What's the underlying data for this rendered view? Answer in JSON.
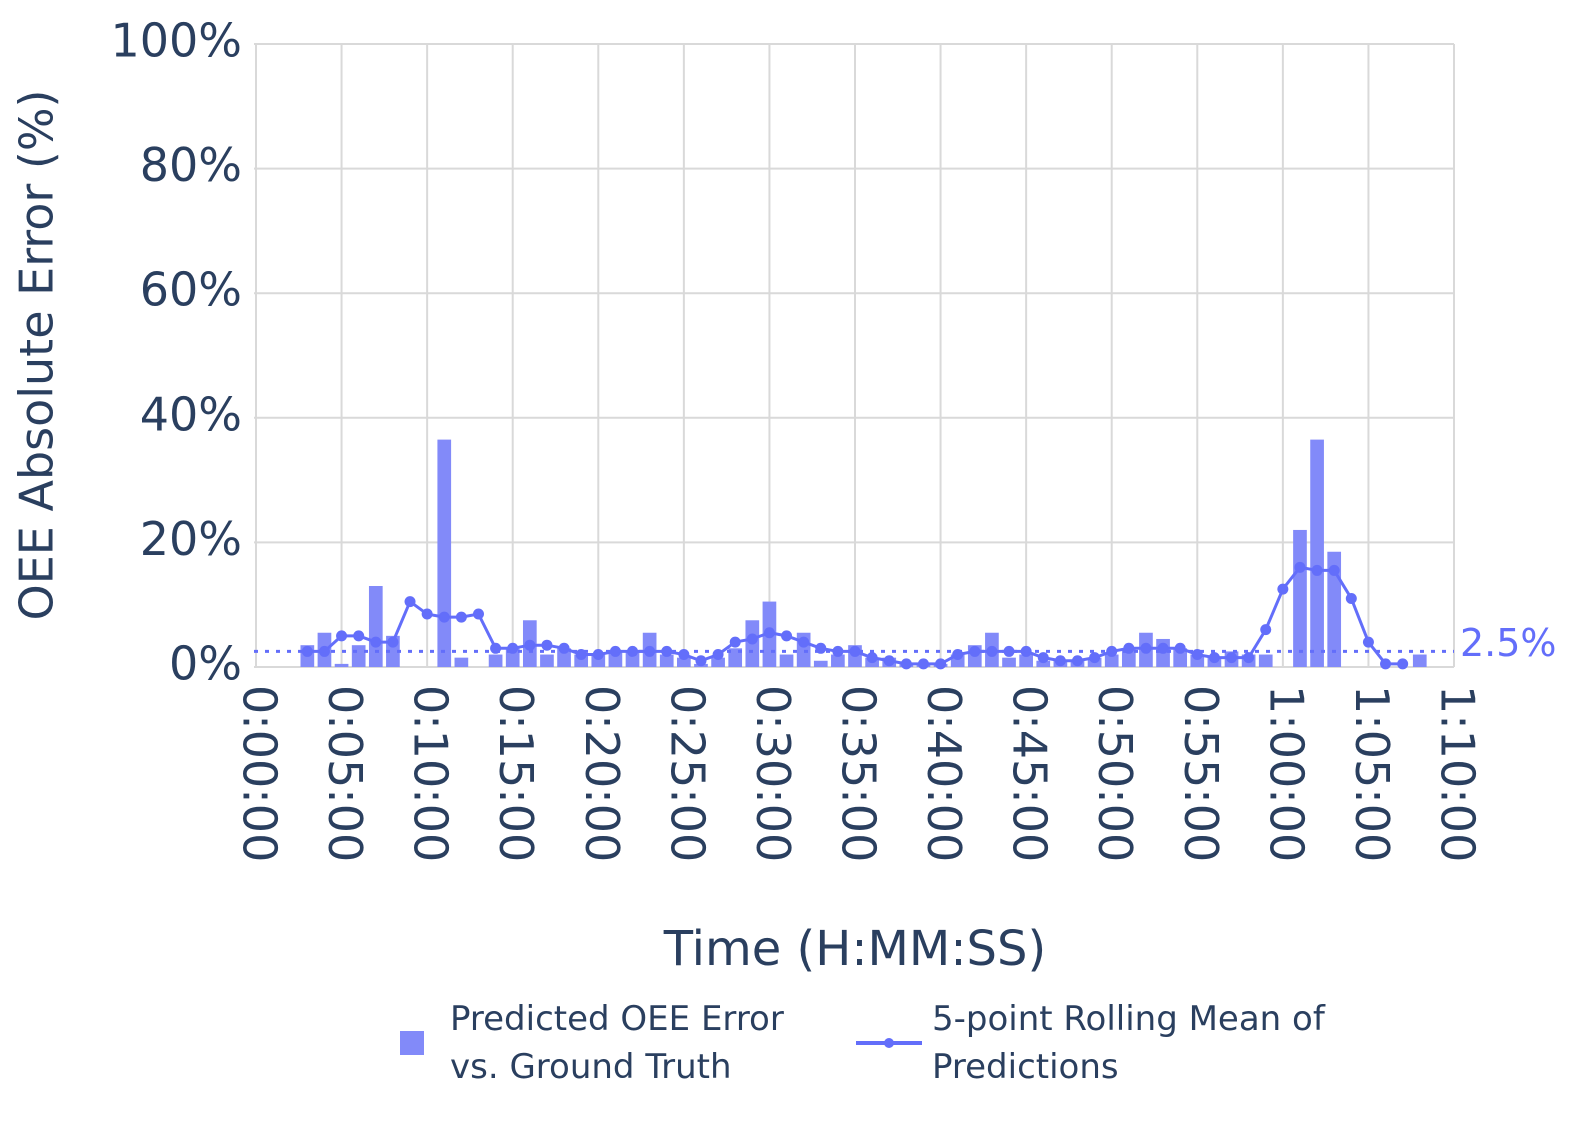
{
  "chart_data": {
    "type": "bar-line",
    "x_title": "Time (H:MM:SS)",
    "y_title": "OEE Absolute Error (%)",
    "xlim": [
      0,
      70
    ],
    "xticks": [
      {
        "value": 0,
        "label": "0:00:00"
      },
      {
        "value": 5,
        "label": "0:05:00"
      },
      {
        "value": 10,
        "label": "0:10:00"
      },
      {
        "value": 15,
        "label": "0:15:00"
      },
      {
        "value": 20,
        "label": "0:20:00"
      },
      {
        "value": 25,
        "label": "0:25:00"
      },
      {
        "value": 30,
        "label": "0:30:00"
      },
      {
        "value": 35,
        "label": "0:35:00"
      },
      {
        "value": 40,
        "label": "0:40:00"
      },
      {
        "value": 45,
        "label": "0:45:00"
      },
      {
        "value": 50,
        "label": "0:50:00"
      },
      {
        "value": 55,
        "label": "0:55:00"
      },
      {
        "value": 60,
        "label": "1:00:00"
      },
      {
        "value": 65,
        "label": "1:05:00"
      },
      {
        "value": 70,
        "label": "1:10:00"
      }
    ],
    "ylim": [
      0,
      100
    ],
    "yticks": [
      {
        "value": 0,
        "label": "0%"
      },
      {
        "value": 20,
        "label": "20%"
      },
      {
        "value": 40,
        "label": "40%"
      },
      {
        "value": 60,
        "label": "60%"
      },
      {
        "value": 80,
        "label": "80%"
      },
      {
        "value": 100,
        "label": "100%"
      }
    ],
    "grid": true,
    "x": [
      3,
      4,
      5,
      6,
      7,
      8,
      9,
      10,
      11,
      12,
      13,
      14,
      15,
      16,
      17,
      18,
      19,
      20,
      21,
      22,
      23,
      24,
      25,
      26,
      27,
      28,
      29,
      30,
      31,
      32,
      33,
      34,
      35,
      36,
      37,
      38,
      39,
      40,
      41,
      42,
      43,
      44,
      45,
      46,
      47,
      48,
      49,
      50,
      51,
      52,
      53,
      54,
      55,
      56,
      57,
      58,
      59,
      60,
      61,
      62,
      63,
      64,
      65,
      66,
      67,
      68
    ],
    "series": [
      {
        "name": "Predicted OEE Error vs. Ground Truth",
        "type": "bar",
        "color": "#828af9",
        "values": [
          3.5,
          5.5,
          0.5,
          3.5,
          13,
          5,
          0,
          0,
          36.5,
          1.5,
          0,
          2,
          3,
          7.5,
          2,
          3,
          2,
          2,
          2.5,
          2.5,
          5.5,
          2,
          1.5,
          0.5,
          1.5,
          3,
          7.5,
          10.5,
          2,
          5.5,
          1,
          2,
          3.5,
          1.5,
          1.5,
          0.5,
          0.5,
          0.5,
          2,
          3.5,
          5.5,
          1.5,
          2,
          1,
          1,
          1,
          1.5,
          2,
          3,
          5.5,
          4.5,
          3,
          2,
          1.5,
          2.5,
          2,
          2,
          0,
          22,
          36.5,
          18.5,
          0,
          0,
          0,
          0,
          2
        ]
      },
      {
        "name": "5-point Rolling Mean of Predictions",
        "type": "line",
        "color": "#636efa",
        "values": [
          2.5,
          2.5,
          5,
          5,
          4,
          4,
          10.5,
          8.5,
          8,
          8,
          8.5,
          3,
          3,
          3.5,
          3.5,
          3,
          2,
          2,
          2.5,
          2.5,
          2.5,
          2.5,
          2,
          1,
          2,
          4,
          4.5,
          5.5,
          5,
          4,
          3,
          2.5,
          2.5,
          1.5,
          1,
          0.5,
          0.5,
          0.5,
          2,
          2.5,
          2.5,
          2.5,
          2.5,
          1.5,
          1,
          1,
          1.5,
          2.5,
          3,
          3,
          3,
          3,
          2,
          1.5,
          1.5,
          1.5,
          6,
          12.5,
          16,
          15.5,
          15.5,
          11,
          4,
          0.5,
          0.5,
          null
        ]
      }
    ],
    "reference_line": {
      "value": 2.5,
      "label": "2.5%",
      "color": "#636efa"
    }
  }
}
